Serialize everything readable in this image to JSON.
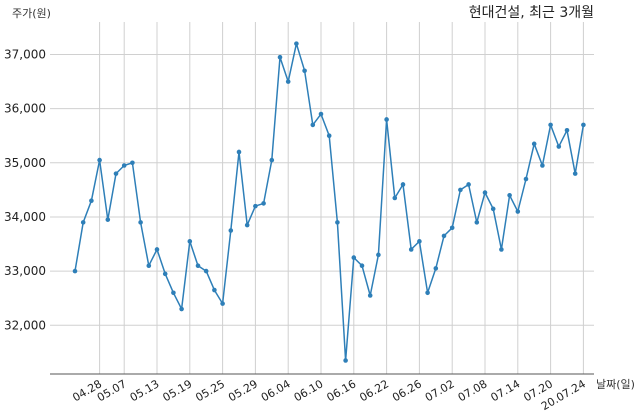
{
  "chart_data": {
    "type": "line",
    "title": "현대건설, 최근 3개월",
    "ylabel": "주가(원)",
    "xlabel": "날짜(일)",
    "ylim": [
      31100,
      37600
    ],
    "y_ticks": [
      32000,
      33000,
      34000,
      35000,
      36000,
      37000
    ],
    "y_tick_labels": [
      "32,000",
      "33,000",
      "34,000",
      "35,000",
      "36,000",
      "37,000"
    ],
    "x_tick_labels": [
      "04.28",
      "05.07",
      "05.13",
      "05.19",
      "05.25",
      "05.29",
      "06.04",
      "06.10",
      "06.16",
      "06.22",
      "06.26",
      "07.02",
      "07.08",
      "07.14",
      "07.20",
      "20.07.24"
    ],
    "x_tick_indices": [
      3,
      6,
      10,
      14,
      18,
      22,
      26,
      30,
      34,
      38,
      42,
      46,
      50,
      54,
      58,
      62
    ],
    "grid": true,
    "series": [
      {
        "color": "#2e7fb8",
        "values": [
          33000,
          33900,
          34300,
          35050,
          33950,
          34800,
          34950,
          35000,
          33900,
          33100,
          33400,
          32950,
          32600,
          32300,
          33550,
          33100,
          33000,
          32650,
          32400,
          33750,
          35200,
          33850,
          34200,
          34250,
          35050,
          36950,
          36500,
          37200,
          36700,
          35700,
          35900,
          35500,
          33900,
          31350,
          33250,
          33100,
          32550,
          33300,
          35800,
          34350,
          34600,
          33400,
          33550,
          32600,
          33050,
          33650,
          33800,
          34500,
          34600,
          33900,
          34450,
          34150,
          33400,
          34400,
          34100,
          34700,
          35350,
          34950,
          35700,
          35300,
          35600,
          34800,
          35700
        ]
      }
    ]
  }
}
